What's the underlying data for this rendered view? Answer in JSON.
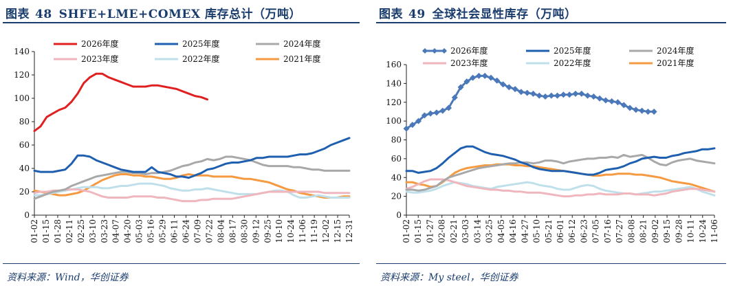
{
  "panels": [
    {
      "title_prefix": "图表",
      "number": "48",
      "title": "SHFE+LME+COMEX 库存总计（万吨）",
      "source": "资料来源：Wind，华创证券",
      "chart_data": {
        "type": "line",
        "y_ticks": [
          0,
          20,
          40,
          60,
          80,
          100,
          120,
          140
        ],
        "ylim": [
          0,
          140
        ],
        "x_tick_labels": [
          "01-02",
          "01-15",
          "01-28",
          "02-11",
          "02-25",
          "03-10",
          "03-23",
          "04-07",
          "04-20",
          "05-03",
          "05-16",
          "05-29",
          "06-11",
          "06-24",
          "07-09",
          "07-22",
          "08-04",
          "08-17",
          "08-30",
          "09-12",
          "09-25",
          "10-10",
          "10-24",
          "11-06",
          "11-19",
          "12-02",
          "12-15",
          "12-31"
        ],
        "x_count": 52,
        "grid": false,
        "legend": "top",
        "series": [
          {
            "name": "2026年度",
            "color": "#e02020",
            "width": 3,
            "marker": false,
            "values": [
              72,
              76,
              84,
              87,
              90,
              92,
              97,
              104,
              113,
              118,
              121,
              121,
              118,
              116,
              114,
              112,
              110,
              110,
              110,
              111,
              111,
              110,
              109,
              108,
              106,
              104,
              102,
              101,
              99
            ]
          },
          {
            "name": "2025年度",
            "color": "#1f5fb0",
            "width": 3,
            "marker": false,
            "values": [
              38,
              37,
              37,
              37,
              38,
              39,
              44,
              51,
              51,
              50,
              47,
              45,
              43,
              41,
              39,
              38,
              37,
              37,
              37,
              41,
              37,
              36,
              35,
              33,
              33,
              32,
              34,
              36,
              39,
              40,
              42,
              44,
              45,
              45,
              46,
              47,
              49,
              49,
              50,
              50,
              50,
              50,
              51,
              52,
              52,
              53,
              55,
              57,
              60,
              62,
              64,
              66
            ]
          },
          {
            "name": "2024年度",
            "color": "#a8a8a8",
            "width": 3,
            "marker": false,
            "values": [
              14,
              16,
              18,
              20,
              21,
              22,
              25,
              27,
              29,
              31,
              33,
              34,
              35,
              36,
              37,
              37,
              36,
              36,
              35,
              36,
              36,
              37,
              38,
              40,
              42,
              43,
              45,
              46,
              48,
              47,
              48,
              50,
              50,
              49,
              48,
              47,
              45,
              43,
              42,
              42,
              42,
              42,
              41,
              41,
              40,
              39,
              39,
              38,
              38,
              38,
              38,
              38
            ]
          },
          {
            "name": "2023年度",
            "color": "#f0b6be",
            "width": 3,
            "marker": false,
            "values": [
              19,
              20,
              20,
              21,
              21,
              22,
              22,
              22,
              21,
              20,
              18,
              16,
              15,
              15,
              15,
              15,
              16,
              16,
              16,
              16,
              15,
              15,
              14,
              13,
              12,
              12,
              12,
              13,
              13,
              14,
              14,
              14,
              14,
              15,
              16,
              17,
              18,
              19,
              20,
              20,
              20,
              20,
              20,
              20,
              20,
              20,
              20,
              19,
              19,
              19,
              19,
              19
            ]
          },
          {
            "name": "2022年度",
            "color": "#bfe0ea",
            "width": 3,
            "marker": false,
            "values": [
              17,
              17,
              18,
              19,
              20,
              21,
              22,
              23,
              24,
              24,
              24,
              23,
              23,
              24,
              25,
              25,
              26,
              27,
              27,
              27,
              26,
              25,
              23,
              22,
              21,
              21,
              22,
              22,
              23,
              22,
              21,
              20,
              19,
              18,
              18,
              18,
              18,
              19,
              20,
              21,
              21,
              20,
              17,
              15,
              15,
              16,
              17,
              16,
              15,
              15,
              15,
              15
            ]
          },
          {
            "name": "2021年度",
            "color": "#f59a40",
            "width": 3,
            "marker": false,
            "values": [
              21,
              20,
              19,
              18,
              17,
              17,
              18,
              19,
              21,
              24,
              27,
              30,
              32,
              34,
              35,
              35,
              34,
              34,
              33,
              33,
              32,
              31,
              31,
              32,
              34,
              35,
              34,
              34,
              34,
              33,
              33,
              33,
              33,
              32,
              31,
              31,
              30,
              29,
              28,
              26,
              24,
              22,
              21,
              19,
              18,
              17,
              16,
              15,
              15,
              15,
              16,
              16
            ]
          }
        ]
      }
    },
    {
      "title_prefix": "图表",
      "number": "49",
      "title": "全球社会显性库存（万吨）",
      "source": "资料来源：My steel，华创证券",
      "chart_data": {
        "type": "line",
        "y_ticks": [
          0,
          20,
          40,
          60,
          80,
          100,
          120,
          140,
          160
        ],
        "ylim": [
          0,
          160
        ],
        "x_tick_labels": [
          "01-02",
          "01-15",
          "01-27",
          "02-08",
          "02-21",
          "03-03",
          "03-14",
          "03-25",
          "04-05",
          "04-16",
          "04-27",
          "05-10",
          "05-21",
          "06-01",
          "06-12",
          "06-23",
          "07-05",
          "07-16",
          "07-27",
          "08-08",
          "08-21",
          "09-02",
          "09-15",
          "09-28",
          "10-11",
          "10-24",
          "11-06"
        ],
        "x_count": 52,
        "grid": false,
        "legend": "top",
        "series": [
          {
            "name": "2026年度",
            "color": "#4a78b8",
            "width": 3,
            "marker": true,
            "values": [
              92,
              96,
              100,
              106,
              108,
              109,
              111,
              114,
              125,
              136,
              142,
              146,
              148,
              148,
              146,
              143,
              139,
              136,
              134,
              131,
              130,
              129,
              127,
              126,
              127,
              127,
              128,
              128,
              129,
              129,
              127,
              126,
              124,
              122,
              121,
              120,
              117,
              114,
              112,
              111,
              110,
              110
            ]
          },
          {
            "name": "2025年度",
            "color": "#1f5fb0",
            "width": 3,
            "marker": false,
            "values": [
              47,
              47,
              45,
              46,
              47,
              50,
              55,
              61,
              66,
              71,
              73,
              73,
              70,
              67,
              65,
              64,
              63,
              61,
              59,
              56,
              54,
              51,
              49,
              48,
              47,
              47,
              47,
              46,
              45,
              44,
              43,
              43,
              45,
              48,
              49,
              50,
              52,
              55,
              57,
              60,
              61,
              62,
              61,
              61,
              63,
              64,
              66,
              67,
              68,
              70,
              70,
              71
            ]
          },
          {
            "name": "2024年度",
            "color": "#a8a8a8",
            "width": 3,
            "marker": false,
            "values": [
              27,
              27,
              26,
              27,
              29,
              31,
              36,
              40,
              42,
              44,
              46,
              48,
              50,
              51,
              52,
              53,
              54,
              55,
              55,
              56,
              56,
              55,
              56,
              58,
              58,
              57,
              55,
              57,
              58,
              59,
              60,
              60,
              61,
              61,
              62,
              61,
              64,
              62,
              63,
              64,
              61,
              57,
              54,
              53,
              56,
              58,
              59,
              60,
              58,
              57,
              56,
              55
            ]
          },
          {
            "name": "2023年度",
            "color": "#f0b6be",
            "width": 3,
            "marker": false,
            "values": [
              28,
              30,
              33,
              36,
              38,
              38,
              38,
              37,
              35,
              33,
              31,
              30,
              29,
              28,
              27,
              27,
              26,
              26,
              25,
              25,
              24,
              24,
              24,
              23,
              22,
              21,
              20,
              20,
              21,
              21,
              22,
              22,
              23,
              22,
              22,
              22,
              23,
              23,
              22,
              22,
              22,
              21,
              22,
              23,
              25,
              26,
              27,
              28,
              28,
              27,
              26,
              25
            ]
          },
          {
            "name": "2022年度",
            "color": "#bfe0ea",
            "width": 3,
            "marker": false,
            "values": [
              25,
              24,
              24,
              25,
              26,
              28,
              31,
              33,
              35,
              34,
              33,
              31,
              30,
              29,
              28,
              30,
              31,
              32,
              33,
              34,
              35,
              34,
              32,
              31,
              30,
              28,
              27,
              27,
              29,
              31,
              32,
              31,
              28,
              26,
              25,
              24,
              23,
              23,
              22,
              23,
              24,
              25,
              25,
              26,
              27,
              28,
              29,
              30,
              28,
              25,
              23,
              21
            ]
          },
          {
            "name": "2021年度",
            "color": "#f59a40",
            "width": 3,
            "marker": false,
            "values": [
              35,
              35,
              33,
              32,
              30,
              31,
              35,
              40,
              45,
              48,
              50,
              51,
              52,
              53,
              53,
              54,
              54,
              54,
              53,
              53,
              52,
              52,
              51,
              50,
              49,
              48,
              47,
              46,
              45,
              44,
              43,
              42,
              42,
              43,
              43,
              44,
              44,
              44,
              43,
              43,
              42,
              41,
              40,
              38,
              36,
              35,
              34,
              33,
              31,
              29,
              27,
              25
            ]
          }
        ]
      }
    }
  ]
}
